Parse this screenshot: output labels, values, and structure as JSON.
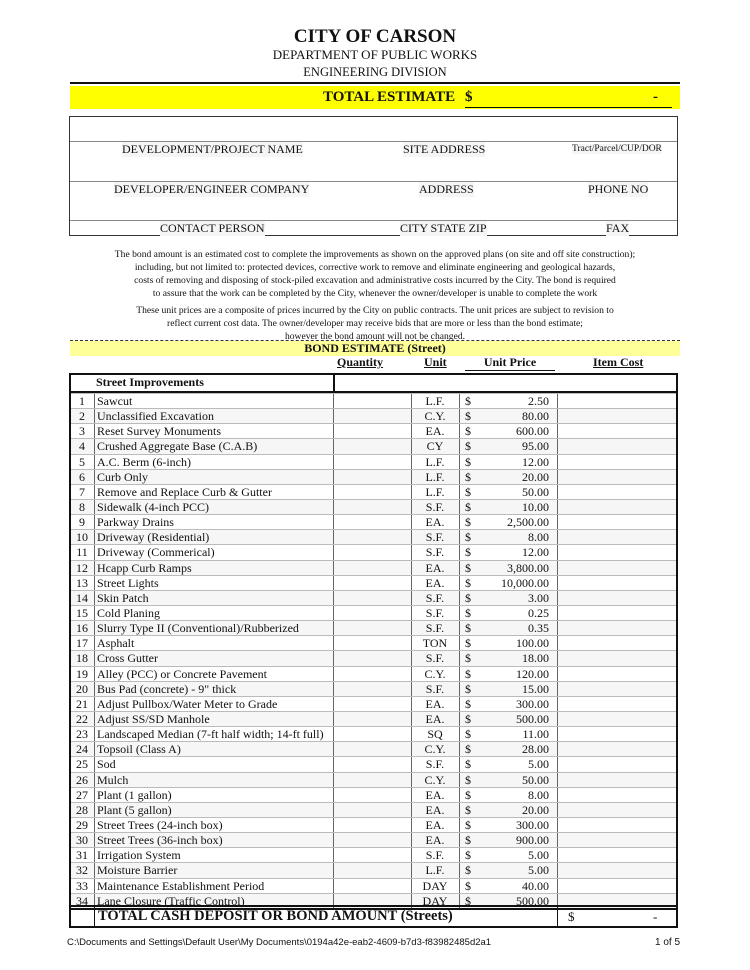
{
  "header": {
    "title": "CITY OF CARSON",
    "department": "DEPARTMENT OF PUBLIC WORKS",
    "division": "ENGINEERING DIVISION"
  },
  "total_estimate": {
    "label": "TOTAL ESTIMATE",
    "currency": "$",
    "value": "-",
    "highlight_color": "#ffff00"
  },
  "info_box": {
    "row1": [
      "DEVELOPMENT/PROJECT NAME",
      "SITE ADDRESS",
      "Tract/Parcel/CUP/DOR"
    ],
    "row2": [
      "DEVELOPER/ENGINEER COMPANY",
      "ADDRESS",
      "PHONE NO"
    ],
    "row3": [
      "CONTACT PERSON",
      "CITY STATE ZIP",
      "FAX"
    ]
  },
  "paragraph1": [
    "The bond amount is an estimated cost to complete the improvements as shown on the approved plans (on site and off site construction);",
    "including, but not limited to: protected devices, corrective work to remove and eliminate engineering and geological hazards,",
    "costs of removing and disposing of stock-piled excavation and administrative costs incurred by the City.  The bond is required",
    "to assure that the work can be completed by the City, whenever the owner/developer is unable to complete the work"
  ],
  "paragraph2": [
    "These unit prices are a composite of prices incurred by the City on public contracts.  The unit prices are subject to revision to",
    "reflect current cost data. The owner/developer may receive bids that are more or less than the bond estimate;",
    "however the bond amount will not be changed."
  ],
  "bond": {
    "title": "BOND ESTIMATE (Street)",
    "highlight_color": "#ffff99",
    "columns": {
      "quantity": "Quantity",
      "unit": "Unit",
      "unit_price": "Unit Price",
      "item_cost": "Item Cost"
    },
    "section": "Street Improvements",
    "items": [
      [
        "1",
        "Sawcut",
        "L.F.",
        "2.50"
      ],
      [
        "2",
        "Unclassified Excavation",
        "C.Y.",
        "80.00"
      ],
      [
        "3",
        "Reset Survey Monuments",
        "EA.",
        "600.00"
      ],
      [
        "4",
        "Crushed Aggregate Base (C.A.B)",
        "CY",
        "95.00"
      ],
      [
        "5",
        "A.C. Berm (6-inch)",
        "L.F.",
        "12.00"
      ],
      [
        "6",
        "Curb Only",
        "L.F.",
        "20.00"
      ],
      [
        "7",
        "Remove and Replace Curb & Gutter",
        "L.F.",
        "50.00"
      ],
      [
        "8",
        "Sidewalk (4-inch PCC)",
        "S.F.",
        "10.00"
      ],
      [
        "9",
        "Parkway Drains",
        "EA.",
        "2,500.00"
      ],
      [
        "10",
        "Driveway (Residential)",
        "S.F.",
        "8.00"
      ],
      [
        "11",
        "Driveway (Commerical)",
        "S.F.",
        "12.00"
      ],
      [
        "12",
        "Hcapp Curb Ramps",
        "EA.",
        "3,800.00"
      ],
      [
        "13",
        "Street Lights",
        "EA.",
        "10,000.00"
      ],
      [
        "14",
        "Skin Patch",
        "S.F.",
        "3.00"
      ],
      [
        "15",
        "Cold Planing",
        "S.F.",
        "0.25"
      ],
      [
        "16",
        "Slurry Type II (Conventional)/Rubberized",
        "S.F.",
        "0.35"
      ],
      [
        "17",
        "Asphalt",
        "TON",
        "100.00"
      ],
      [
        "18",
        "Cross Gutter",
        "S.F.",
        "18.00"
      ],
      [
        "19",
        "Alley (PCC) or Concrete Pavement",
        "C.Y.",
        "120.00"
      ],
      [
        "20",
        "Bus Pad (concrete) - 9\" thick",
        "S.F.",
        "15.00"
      ],
      [
        "21",
        "Adjust Pullbox/Water Meter to Grade",
        "EA.",
        "300.00"
      ],
      [
        "22",
        "Adjust SS/SD Manhole",
        "EA.",
        "500.00"
      ],
      [
        "23",
        "Landscaped Median (7-ft half width; 14-ft full)",
        "SQ",
        "11.00"
      ],
      [
        "24",
        "Topsoil (Class A)",
        "C.Y.",
        "28.00"
      ],
      [
        "25",
        "Sod",
        "S.F.",
        "5.00"
      ],
      [
        "26",
        "Mulch",
        "C.Y.",
        "50.00"
      ],
      [
        "27",
        "Plant (1 gallon)",
        "EA.",
        "8.00"
      ],
      [
        "28",
        "Plant (5 gallon)",
        "EA.",
        "20.00"
      ],
      [
        "29",
        "Street Trees (24-inch box)",
        "EA.",
        "300.00"
      ],
      [
        "30",
        "Street Trees (36-inch box)",
        "EA.",
        "900.00"
      ],
      [
        "31",
        "Irrigation System",
        "S.F.",
        "5.00"
      ],
      [
        "32",
        "Moisture Barrier",
        "L.F.",
        "5.00"
      ],
      [
        "33",
        "Maintenance Establishment Period",
        "DAY",
        "40.00"
      ],
      [
        "34",
        "Lane Closure (Traffic Control)",
        "DAY",
        "500.00"
      ]
    ],
    "currency": "$",
    "total": {
      "label": "TOTAL CASH DEPOSIT OR BOND AMOUNT (Streets)",
      "currency": "$",
      "value": "-"
    }
  },
  "footer": {
    "path": "C:\\Documents and Settings\\Default User\\My Documents\\0194a42e-eab2-4609-b7d3-f83982485d2a1",
    "page": "1 of 5"
  }
}
